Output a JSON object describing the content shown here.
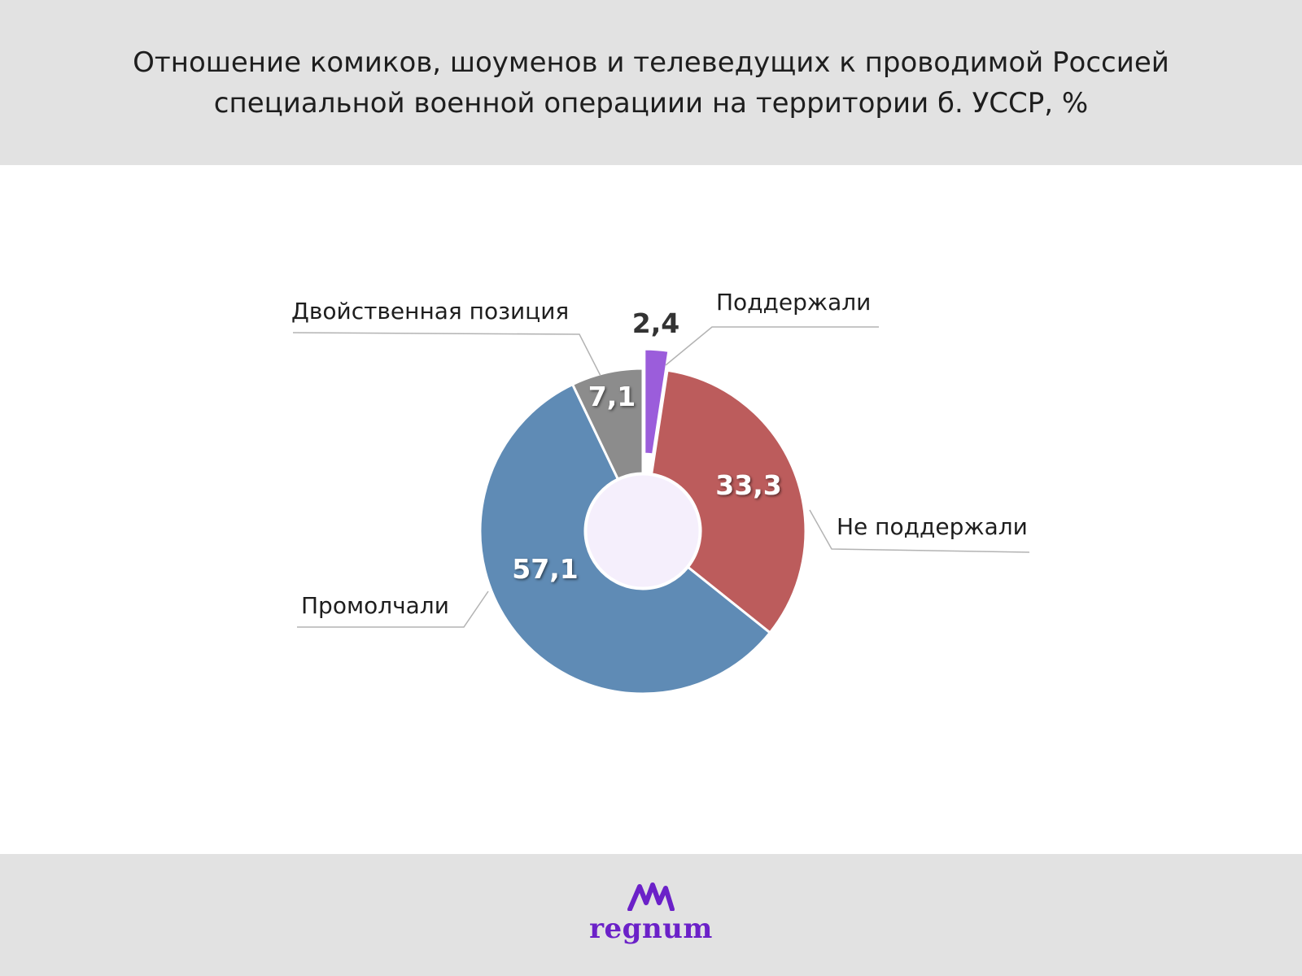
{
  "title": {
    "line1": "Отношение комиков, шоуменов и телеведущих к проводимой Россией",
    "line2": "специальной военной операциии на территории б. УССР, %"
  },
  "logo": {
    "text": "regnum",
    "icon": "regnum-mountain-logo",
    "color": "#6b21c8"
  },
  "chart_data": {
    "type": "pie",
    "variant": "donut",
    "unit": "%",
    "slices": [
      {
        "label": "Поддержали",
        "value": 2.4,
        "value_label": "2,4",
        "color": "#9b5ddb",
        "exploded": true
      },
      {
        "label": "Не поддержали",
        "value": 33.3,
        "value_label": "33,3",
        "color": "#bc5c5c"
      },
      {
        "label": "Промолчали",
        "value": 57.1,
        "value_label": "57,1",
        "color": "#5f8bb5"
      },
      {
        "label": "Двойственная позиция",
        "value": 7.1,
        "value_label": "7,1",
        "color": "#8c8c8c"
      }
    ],
    "hole_color": "#f5effc",
    "start_angle_deg": 0,
    "direction": "clockwise"
  }
}
